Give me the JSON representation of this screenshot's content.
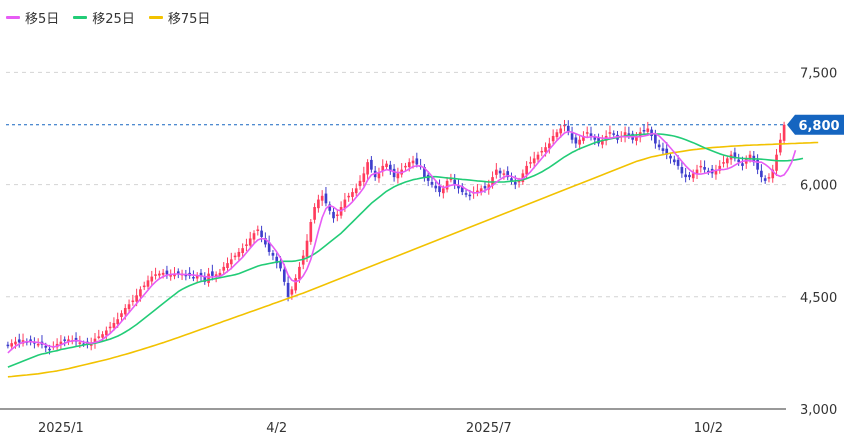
{
  "legend": [
    {
      "label": "移5日",
      "color": "#e75cf5"
    },
    {
      "label": "移25日",
      "color": "#22cc77"
    },
    {
      "label": "移75日",
      "color": "#f2c200"
    }
  ],
  "current_price_label": "6,800",
  "chart_data": {
    "type": "candlestick",
    "up_color": "#ff3b5c",
    "down_color": "#3d3dcc",
    "current_marker_color": "#1565c0",
    "y_ticks": [
      {
        "value": 7500,
        "label": "7,500"
      },
      {
        "value": 6000,
        "label": "6,000"
      },
      {
        "value": 4500,
        "label": "4,500"
      },
      {
        "value": 3000,
        "label": "3,000"
      }
    ],
    "x_ticks": [
      {
        "index": 14,
        "label": "2025/1"
      },
      {
        "index": 71,
        "label": "4/2"
      },
      {
        "index": 127,
        "label": "2025/7"
      },
      {
        "index": 185,
        "label": "10/2"
      }
    ],
    "ylim": [
      3000,
      8000
    ],
    "current_price": 6800,
    "closes": [
      3850,
      3880,
      3900,
      3890,
      3920,
      3900,
      3910,
      3880,
      3870,
      3860,
      3820,
      3800,
      3840,
      3870,
      3900,
      3910,
      3930,
      3920,
      3900,
      3890,
      3870,
      3860,
      3890,
      3940,
      3970,
      4000,
      4050,
      4100,
      4150,
      4200,
      4280,
      4350,
      4400,
      4450,
      4520,
      4600,
      4650,
      4720,
      4770,
      4800,
      4810,
      4820,
      4800,
      4790,
      4810,
      4800,
      4810,
      4790,
      4780,
      4760,
      4790,
      4780,
      4700,
      4810,
      4780,
      4800,
      4820,
      4900,
      4950,
      5000,
      5050,
      5100,
      5150,
      5200,
      5280,
      5350,
      5400,
      5300,
      5200,
      5100,
      5050,
      4950,
      4880,
      4700,
      4500,
      4600,
      4750,
      4900,
      5050,
      5250,
      5500,
      5700,
      5800,
      5850,
      5750,
      5650,
      5550,
      5600,
      5700,
      5800,
      5850,
      5900,
      5950,
      6050,
      6150,
      6300,
      6200,
      6100,
      6150,
      6250,
      6280,
      6180,
      6100,
      6150,
      6200,
      6250,
      6300,
      6320,
      6270,
      6250,
      6100,
      6050,
      6000,
      5950,
      5900,
      5950,
      6050,
      6080,
      6000,
      5950,
      5900,
      5880,
      5850,
      5900,
      5920,
      5950,
      5950,
      6000,
      6100,
      6200,
      6150,
      6150,
      6100,
      6050,
      6000,
      6050,
      6150,
      6250,
      6300,
      6350,
      6400,
      6450,
      6500,
      6550,
      6650,
      6700,
      6750,
      6800,
      6700,
      6600,
      6550,
      6600,
      6650,
      6700,
      6650,
      6600,
      6550,
      6600,
      6650,
      6700,
      6680,
      6600,
      6650,
      6700,
      6650,
      6600,
      6650,
      6700,
      6720,
      6750,
      6650,
      6550,
      6500,
      6450,
      6400,
      6350,
      6300,
      6250,
      6150,
      6100,
      6100,
      6150,
      6200,
      6250,
      6200,
      6180,
      6150,
      6200,
      6250,
      6300,
      6350,
      6400,
      6350,
      6300,
      6250,
      6350,
      6400,
      6300,
      6200,
      6100,
      6050,
      6100,
      6200,
      6400,
      6600,
      6800
    ],
    "ma5": [
      3750,
      3800,
      3840,
      3870,
      3890,
      3900,
      3900,
      3895,
      3890,
      3880,
      3860,
      3840,
      3830,
      3840,
      3860,
      3880,
      3900,
      3910,
      3915,
      3910,
      3895,
      3885,
      3880,
      3890,
      3905,
      3930,
      3970,
      4010,
      4060,
      4110,
      4170,
      4230,
      4290,
      4350,
      4410,
      4470,
      4530,
      4590,
      4650,
      4700,
      4740,
      4770,
      4790,
      4800,
      4805,
      4805,
      4800,
      4800,
      4795,
      4790,
      4785,
      4780,
      4770,
      4765,
      4765,
      4770,
      4775,
      4800,
      4840,
      4880,
      4930,
      4980,
      5030,
      5090,
      5150,
      5210,
      5260,
      5280,
      5270,
      5230,
      5170,
      5100,
      5020,
      4920,
      4790,
      4720,
      4700,
      4720,
      4780,
      4870,
      5000,
      5180,
      5380,
      5560,
      5680,
      5720,
      5700,
      5660,
      5650,
      5680,
      5720,
      5770,
      5830,
      5890,
      5960,
      6060,
      6130,
      6150,
      6160,
      6180,
      6200,
      6190,
      6170,
      6160,
      6160,
      6180,
      6210,
      6240,
      6250,
      6250,
      6220,
      6170,
      6110,
      6050,
      5990,
      5960,
      5970,
      5990,
      6000,
      5990,
      5970,
      5940,
      5910,
      5890,
      5890,
      5900,
      5920,
      5950,
      5990,
      6030,
      6070,
      6100,
      6120,
      6110,
      6090,
      6070,
      6080,
      6120,
      6170,
      6230,
      6290,
      6350,
      6410,
      6470,
      6530,
      6590,
      6640,
      6690,
      6710,
      6700,
      6680,
      6660,
      6640,
      6630,
      6640,
      6640,
      6630,
      6620,
      6620,
      6620,
      6630,
      6640,
      6640,
      6640,
      6640,
      6640,
      6640,
      6640,
      6650,
      6660,
      6680,
      6680,
      6650,
      6600,
      6550,
      6490,
      6430,
      6370,
      6310,
      6250,
      6200,
      6160,
      6140,
      6140,
      6150,
      6160,
      6180,
      6190,
      6200,
      6200,
      6210,
      6230,
      6260,
      6290,
      6310,
      6320,
      6320,
      6310,
      6300,
      6300,
      6270,
      6230,
      6180,
      6130,
      6110,
      6130,
      6200,
      6300,
      6460
    ],
    "ma25": [
      3560,
      3580,
      3600,
      3620,
      3640,
      3660,
      3680,
      3700,
      3720,
      3735,
      3745,
      3760,
      3770,
      3780,
      3795,
      3805,
      3815,
      3825,
      3835,
      3845,
      3855,
      3865,
      3870,
      3880,
      3890,
      3905,
      3920,
      3935,
      3955,
      3975,
      4000,
      4030,
      4060,
      4095,
      4130,
      4170,
      4210,
      4250,
      4290,
      4330,
      4370,
      4410,
      4450,
      4490,
      4530,
      4570,
      4600,
      4625,
      4650,
      4670,
      4690,
      4705,
      4715,
      4725,
      4735,
      4745,
      4755,
      4765,
      4775,
      4785,
      4795,
      4810,
      4830,
      4850,
      4870,
      4890,
      4910,
      4925,
      4935,
      4945,
      4955,
      4965,
      4970,
      4975,
      4975,
      4975,
      4980,
      4990,
      5000,
      5020,
      5045,
      5075,
      5110,
      5150,
      5190,
      5230,
      5270,
      5310,
      5350,
      5400,
      5450,
      5500,
      5550,
      5600,
      5650,
      5700,
      5750,
      5790,
      5830,
      5870,
      5910,
      5940,
      5970,
      5995,
      6015,
      6035,
      6050,
      6065,
      6075,
      6085,
      6095,
      6100,
      6105,
      6105,
      6100,
      6095,
      6090,
      6085,
      6080,
      6075,
      6070,
      6065,
      6060,
      6055,
      6050,
      6045,
      6040,
      6035,
      6035,
      6035,
      6035,
      6035,
      6040,
      6045,
      6050,
      6055,
      6065,
      6080,
      6100,
      6120,
      6145,
      6170,
      6200,
      6230,
      6265,
      6300,
      6335,
      6370,
      6400,
      6430,
      6455,
      6480,
      6500,
      6520,
      6540,
      6560,
      6575,
      6590,
      6600,
      6610,
      6620,
      6630,
      6640,
      6648,
      6655,
      6660,
      6665,
      6670,
      6672,
      6675,
      6676,
      6677,
      6676,
      6672,
      6666,
      6658,
      6648,
      6634,
      6618,
      6600,
      6580,
      6560,
      6538,
      6515,
      6492,
      6470,
      6450,
      6430,
      6412,
      6396,
      6382,
      6370,
      6362,
      6356,
      6350,
      6347,
      6345,
      6344,
      6343,
      6340,
      6336,
      6330,
      6325,
      6320,
      6318,
      6318,
      6320,
      6325,
      6332,
      6340,
      6350
    ],
    "ma75": [
      3430,
      3435,
      3440,
      3445,
      3450,
      3455,
      3460,
      3465,
      3470,
      3478,
      3486,
      3494,
      3502,
      3510,
      3520,
      3530,
      3540,
      3552,
      3564,
      3576,
      3588,
      3600,
      3612,
      3624,
      3636,
      3648,
      3660,
      3674,
      3688,
      3702,
      3716,
      3730,
      3745,
      3760,
      3775,
      3790,
      3806,
      3822,
      3838,
      3854,
      3870,
      3887,
      3904,
      3921,
      3938,
      3956,
      3974,
      3992,
      4010,
      4028,
      4046,
      4064,
      4082,
      4100,
      4118,
      4136,
      4154,
      4172,
      4190,
      4208,
      4226,
      4244,
      4262,
      4280,
      4298,
      4316,
      4334,
      4352,
      4370,
      4388,
      4406,
      4424,
      4442,
      4460,
      4478,
      4496,
      4514,
      4532,
      4550,
      4570,
      4590,
      4610,
      4630,
      4650,
      4670,
      4690,
      4710,
      4730,
      4750,
      4770,
      4790,
      4810,
      4830,
      4850,
      4870,
      4890,
      4910,
      4930,
      4950,
      4970,
      4990,
      5010,
      5030,
      5050,
      5070,
      5090,
      5110,
      5130,
      5150,
      5170,
      5190,
      5210,
      5230,
      5250,
      5270,
      5290,
      5310,
      5330,
      5350,
      5370,
      5390,
      5410,
      5430,
      5450,
      5470,
      5490,
      5510,
      5530,
      5550,
      5570,
      5590,
      5610,
      5630,
      5650,
      5670,
      5690,
      5710,
      5730,
      5750,
      5770,
      5790,
      5810,
      5830,
      5850,
      5870,
      5890,
      5910,
      5930,
      5950,
      5970,
      5990,
      6010,
      6030,
      6050,
      6070,
      6090,
      6110,
      6130,
      6150,
      6170,
      6190,
      6210,
      6230,
      6250,
      6270,
      6290,
      6310,
      6325,
      6340,
      6355,
      6370,
      6380,
      6390,
      6400,
      6410,
      6420,
      6428,
      6436,
      6444,
      6452,
      6460,
      6466,
      6472,
      6478,
      6484,
      6490,
      6494,
      6498,
      6502,
      6506,
      6510,
      6513,
      6516,
      6519,
      6522,
      6525,
      6527,
      6529,
      6531,
      6533,
      6535,
      6537,
      6539,
      6541,
      6543,
      6545,
      6547,
      6549,
      6551,
      6553,
      6555,
      6557,
      6559,
      6561,
      6563
    ]
  }
}
